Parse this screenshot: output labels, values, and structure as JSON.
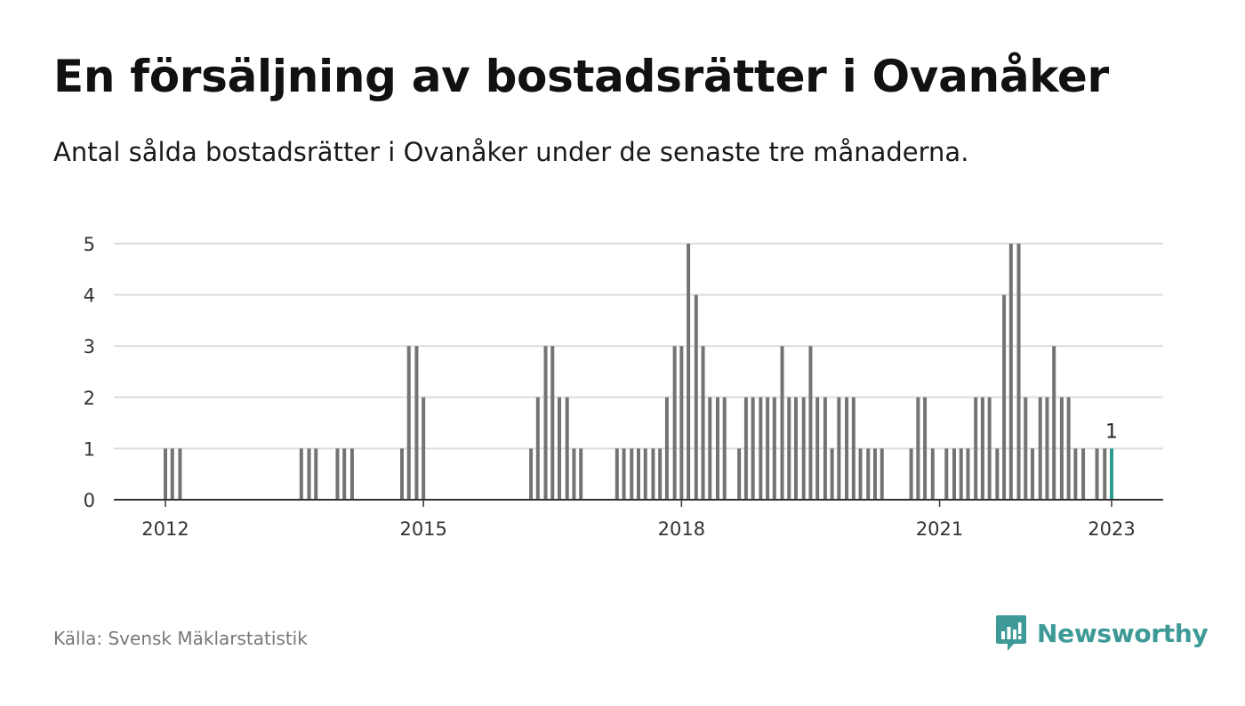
{
  "title": "En försäljning av bostadsrätter i Ovanåker",
  "subtitle": "Antal sålda bostadsrätter i Ovanåker under de senaste tre månaderna.",
  "source": "Källa: Svensk Mäklarstatistik",
  "brand": {
    "name": "Newsworthy",
    "icon": "newsworthy-logo-icon",
    "color": "#3d9a97"
  },
  "chart_data": {
    "type": "bar",
    "title": "En försäljning av bostadsrätter i Ovanåker",
    "xlabel": "",
    "ylabel": "",
    "ylim": [
      0,
      5
    ],
    "yticks": [
      0,
      1,
      2,
      3,
      4,
      5
    ],
    "xtick_labels": [
      {
        "label": "2012",
        "x": 2012.0
      },
      {
        "label": "2015",
        "x": 2015.0
      },
      {
        "label": "2018",
        "x": 2018.0
      },
      {
        "label": "2021",
        "x": 2021.0
      },
      {
        "label": "2023",
        "x": 2023.0
      }
    ],
    "grid": true,
    "x_unit": "year (monthly bars)",
    "colors": {
      "bar": "#737373",
      "highlight": "#2a9d8f",
      "grid": "#dddddd",
      "axis": "#333333"
    },
    "highlight_label": "1",
    "series": [
      {
        "values": [
          {
            "x": 2012.0,
            "y": 1
          },
          {
            "x": 2012.08,
            "y": 1
          },
          {
            "x": 2012.17,
            "y": 1
          },
          {
            "x": 2013.58,
            "y": 1
          },
          {
            "x": 2013.67,
            "y": 1
          },
          {
            "x": 2013.75,
            "y": 1
          },
          {
            "x": 2014.0,
            "y": 1
          },
          {
            "x": 2014.08,
            "y": 1
          },
          {
            "x": 2014.17,
            "y": 1
          },
          {
            "x": 2014.75,
            "y": 1
          },
          {
            "x": 2014.83,
            "y": 3
          },
          {
            "x": 2014.92,
            "y": 3
          },
          {
            "x": 2015.0,
            "y": 2
          },
          {
            "x": 2016.25,
            "y": 1
          },
          {
            "x": 2016.33,
            "y": 2
          },
          {
            "x": 2016.42,
            "y": 3
          },
          {
            "x": 2016.5,
            "y": 3
          },
          {
            "x": 2016.58,
            "y": 2
          },
          {
            "x": 2016.67,
            "y": 2
          },
          {
            "x": 2016.75,
            "y": 1
          },
          {
            "x": 2016.83,
            "y": 1
          },
          {
            "x": 2017.25,
            "y": 1
          },
          {
            "x": 2017.33,
            "y": 1
          },
          {
            "x": 2017.42,
            "y": 1
          },
          {
            "x": 2017.5,
            "y": 1
          },
          {
            "x": 2017.58,
            "y": 1
          },
          {
            "x": 2017.67,
            "y": 1
          },
          {
            "x": 2017.75,
            "y": 1
          },
          {
            "x": 2017.83,
            "y": 2
          },
          {
            "x": 2017.92,
            "y": 3
          },
          {
            "x": 2018.0,
            "y": 3
          },
          {
            "x": 2018.08,
            "y": 5
          },
          {
            "x": 2018.17,
            "y": 4
          },
          {
            "x": 2018.25,
            "y": 3
          },
          {
            "x": 2018.33,
            "y": 2
          },
          {
            "x": 2018.42,
            "y": 2
          },
          {
            "x": 2018.5,
            "y": 2
          },
          {
            "x": 2018.67,
            "y": 1
          },
          {
            "x": 2018.75,
            "y": 2
          },
          {
            "x": 2018.83,
            "y": 2
          },
          {
            "x": 2018.92,
            "y": 2
          },
          {
            "x": 2019.0,
            "y": 2
          },
          {
            "x": 2019.08,
            "y": 2
          },
          {
            "x": 2019.17,
            "y": 3
          },
          {
            "x": 2019.25,
            "y": 2
          },
          {
            "x": 2019.33,
            "y": 2
          },
          {
            "x": 2019.42,
            "y": 2
          },
          {
            "x": 2019.5,
            "y": 3
          },
          {
            "x": 2019.58,
            "y": 2
          },
          {
            "x": 2019.67,
            "y": 2
          },
          {
            "x": 2019.75,
            "y": 1
          },
          {
            "x": 2019.83,
            "y": 2
          },
          {
            "x": 2019.92,
            "y": 2
          },
          {
            "x": 2020.0,
            "y": 2
          },
          {
            "x": 2020.08,
            "y": 1
          },
          {
            "x": 2020.17,
            "y": 1
          },
          {
            "x": 2020.25,
            "y": 1
          },
          {
            "x": 2020.33,
            "y": 1
          },
          {
            "x": 2020.67,
            "y": 1
          },
          {
            "x": 2020.75,
            "y": 2
          },
          {
            "x": 2020.83,
            "y": 2
          },
          {
            "x": 2020.92,
            "y": 1
          },
          {
            "x": 2021.08,
            "y": 1
          },
          {
            "x": 2021.17,
            "y": 1
          },
          {
            "x": 2021.25,
            "y": 1
          },
          {
            "x": 2021.33,
            "y": 1
          },
          {
            "x": 2021.42,
            "y": 2
          },
          {
            "x": 2021.5,
            "y": 2
          },
          {
            "x": 2021.58,
            "y": 2
          },
          {
            "x": 2021.67,
            "y": 1
          },
          {
            "x": 2021.75,
            "y": 4
          },
          {
            "x": 2021.83,
            "y": 5
          },
          {
            "x": 2021.92,
            "y": 5
          },
          {
            "x": 2022.0,
            "y": 2
          },
          {
            "x": 2022.08,
            "y": 1
          },
          {
            "x": 2022.17,
            "y": 2
          },
          {
            "x": 2022.25,
            "y": 2
          },
          {
            "x": 2022.33,
            "y": 3
          },
          {
            "x": 2022.42,
            "y": 2
          },
          {
            "x": 2022.5,
            "y": 2
          },
          {
            "x": 2022.58,
            "y": 1
          },
          {
            "x": 2022.67,
            "y": 1
          },
          {
            "x": 2022.83,
            "y": 1
          },
          {
            "x": 2022.92,
            "y": 1
          },
          {
            "x": 2023.0,
            "y": 1,
            "highlight": true
          }
        ]
      }
    ]
  }
}
